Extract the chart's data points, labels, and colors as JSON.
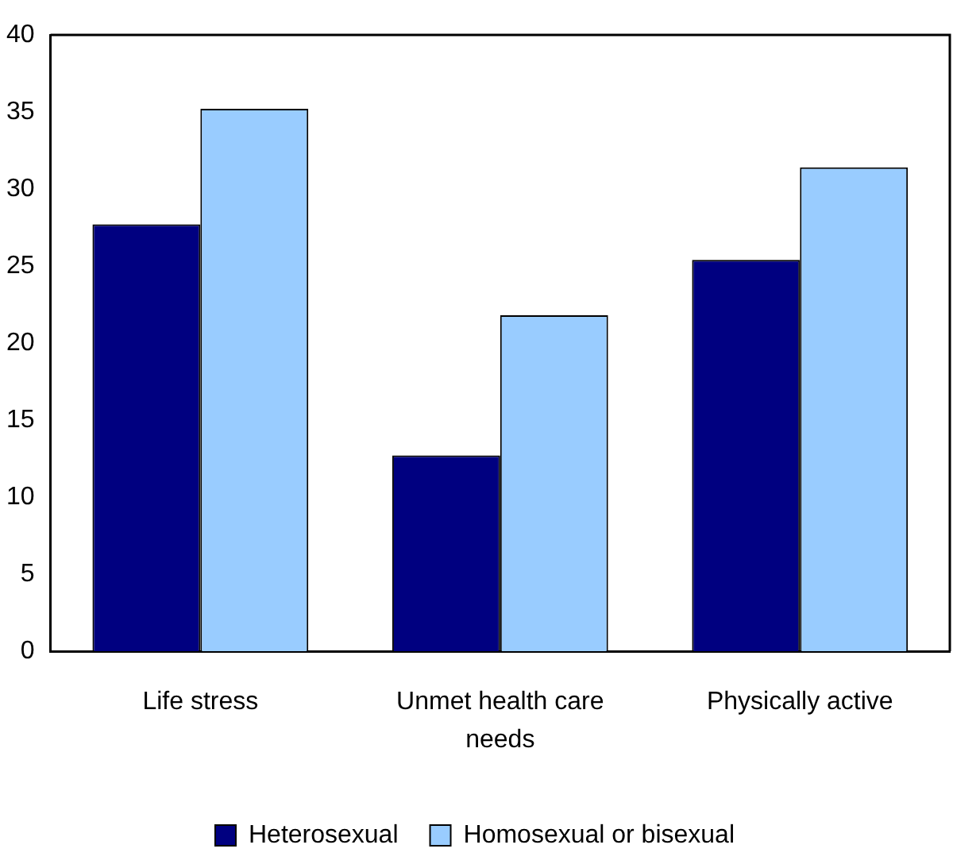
{
  "chart_data": {
    "type": "bar",
    "categories": [
      "Life stress",
      "Unmet health care needs",
      "Physically active"
    ],
    "series": [
      {
        "name": "Heterosexual",
        "color": "#000080",
        "values": [
          27.7,
          12.7,
          25.4
        ]
      },
      {
        "name": "Homosexual or bisexual",
        "color": "#99ccff",
        "values": [
          35.2,
          21.8,
          31.4
        ]
      }
    ],
    "ylim": [
      0,
      40
    ],
    "yticks": [
      0,
      5,
      10,
      15,
      20,
      25,
      30,
      35,
      40
    ],
    "grid": false,
    "legend": "bottom"
  }
}
